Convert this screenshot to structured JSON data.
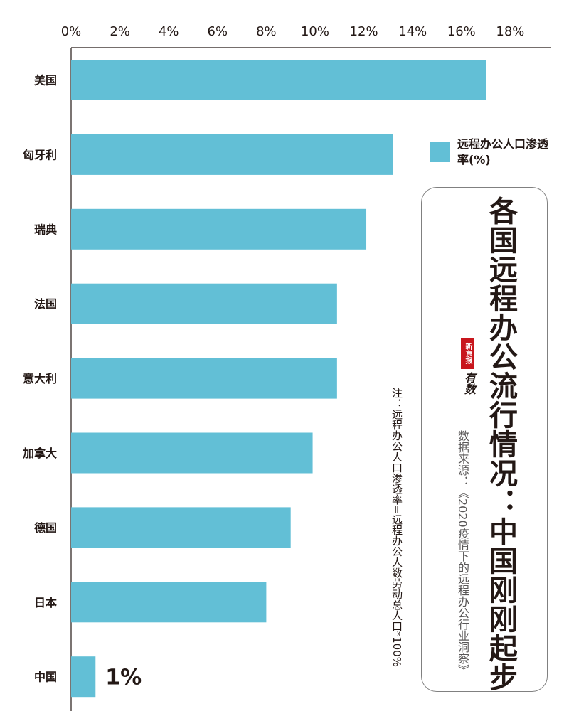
{
  "chart_data": {
    "type": "bar",
    "orientation": "horizontal",
    "title": "各国远程办公流行情况：中国刚刚起步",
    "categories": [
      "美国",
      "匈牙利",
      "瑞典",
      "法国",
      "意大利",
      "加拿大",
      "德国",
      "日本",
      "中国"
    ],
    "series": [
      {
        "name": "远程办公人口渗透率(%)",
        "values": [
          17.0,
          13.2,
          12.1,
          10.9,
          10.9,
          9.9,
          9.0,
          8.0,
          1.0
        ]
      }
    ],
    "x_ticks": [
      "0%",
      "2%",
      "4%",
      "6%",
      "8%",
      "10%",
      "12%",
      "14%",
      "16%",
      "18%"
    ],
    "xlim": [
      0,
      19.8
    ],
    "data_labels": [
      {
        "category": "中国",
        "text": "1%"
      }
    ],
    "bar_color": "#62bfd6",
    "axis_position": "top",
    "legend_position": "right",
    "grid": false
  },
  "legend": {
    "label": "远程办公人口渗透率(%)",
    "color": "#62bfd6"
  },
  "title": "各国远程办公流行情况：中国刚刚起步",
  "note": "注：远程办公人口渗透率=远程办公人数劳动总人口*100%",
  "source": "数据来源：《2020疫情下的远程办公行业洞察》",
  "logo": {
    "seal_text": "新京报",
    "brand_text": "有数"
  }
}
